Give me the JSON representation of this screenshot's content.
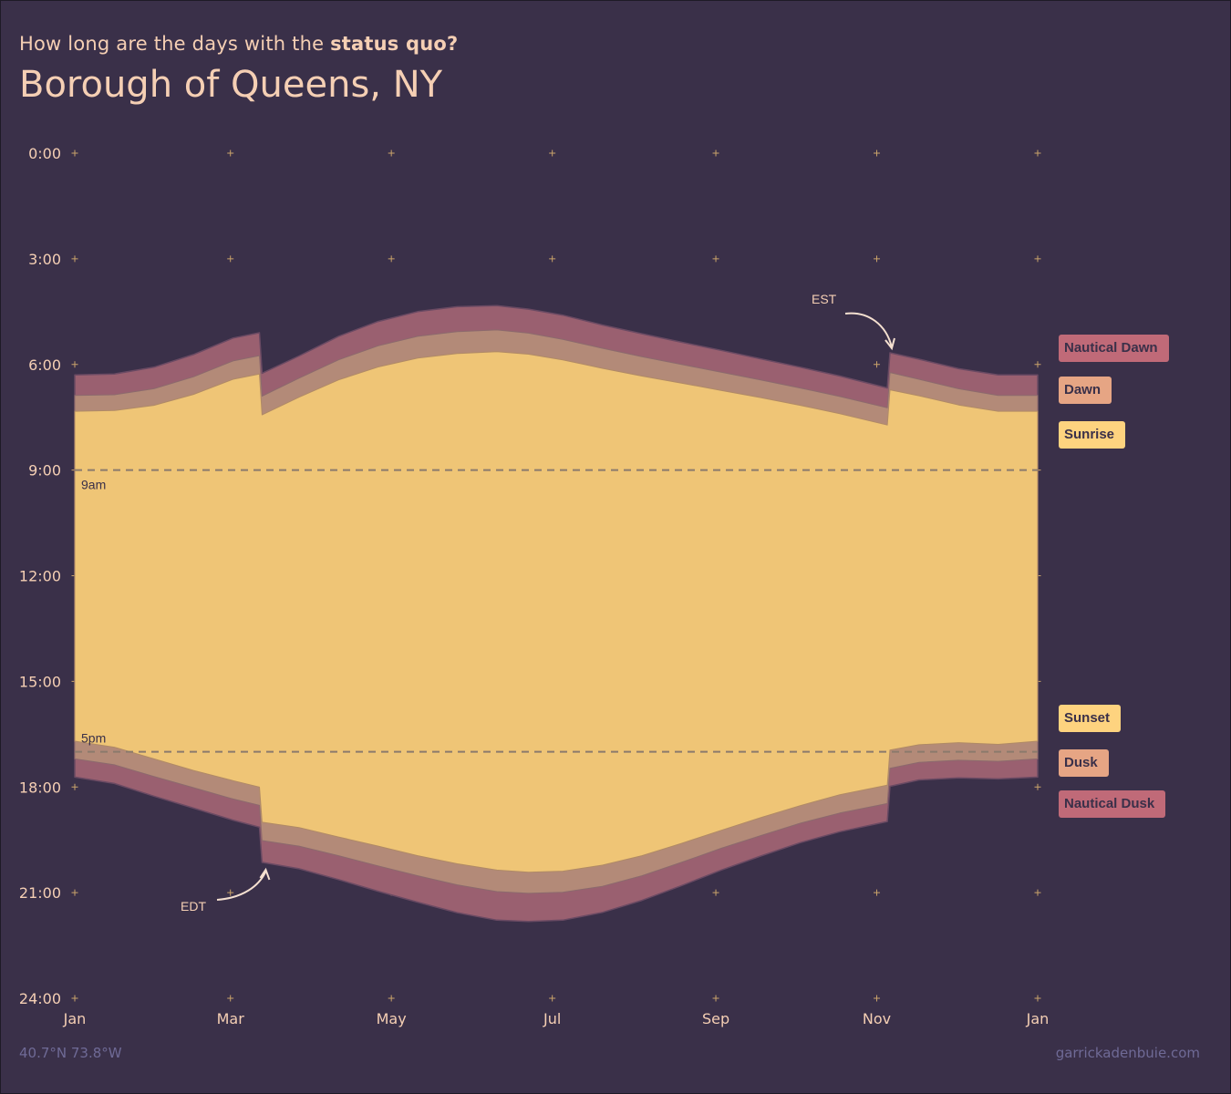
{
  "header": {
    "subtitle_prefix": "How long are the days with the",
    "subtitle_bold": "status quo?",
    "title": "Borough of Queens, NY"
  },
  "footer": {
    "coords": "40.7°N 73.8°W",
    "credit": "garrickadenbuie.com"
  },
  "legend": {
    "nautical_dawn": "Nautical Dawn",
    "dawn": "Dawn",
    "sunrise": "Sunrise",
    "sunset": "Sunset",
    "dusk": "Dusk",
    "nautical_dusk": "Nautical Dusk"
  },
  "colors": {
    "background": "#3a3049",
    "daylight": "#efc576",
    "civil_twilight": "#b38a78",
    "nautical_twilight": "#9a6070",
    "text": "#f5cfb4",
    "reference_line": "#8a7a6c",
    "legend_nautical": "#c06a78",
    "legend_civil": "#e6a584",
    "legend_sun": "#fed37f"
  },
  "chart_data": {
    "type": "area",
    "x_ticks": [
      "Jan",
      "Mar",
      "May",
      "Jul",
      "Sep",
      "Nov",
      "Jan"
    ],
    "x_tick_days": [
      0,
      59,
      120,
      181,
      243,
      304,
      365
    ],
    "y_ticks": [
      "0:00",
      "3:00",
      "6:00",
      "9:00",
      "12:00",
      "15:00",
      "18:00",
      "21:00",
      "24:00"
    ],
    "y_tick_hours": [
      0,
      3,
      6,
      9,
      12,
      15,
      18,
      21,
      24
    ],
    "ylim": [
      0,
      24
    ],
    "y_reversed": true,
    "xlim": [
      0,
      365
    ],
    "series_x_day": [
      0,
      15,
      30,
      45,
      60,
      70,
      71,
      85,
      100,
      115,
      130,
      145,
      160,
      172,
      185,
      200,
      215,
      230,
      245,
      260,
      275,
      290,
      308,
      309,
      320,
      335,
      350,
      365
    ],
    "series": [
      {
        "name": "Nautical Dawn",
        "values": [
          6.3,
          6.27,
          6.08,
          5.72,
          5.25,
          5.1,
          6.25,
          5.76,
          5.2,
          4.78,
          4.5,
          4.36,
          4.33,
          4.43,
          4.6,
          4.88,
          5.13,
          5.37,
          5.6,
          5.84,
          6.08,
          6.33,
          6.67,
          5.67,
          5.85,
          6.12,
          6.3,
          6.3
        ]
      },
      {
        "name": "Dawn",
        "values": [
          6.88,
          6.86,
          6.69,
          6.35,
          5.9,
          5.75,
          6.9,
          6.39,
          5.87,
          5.47,
          5.2,
          5.07,
          5.02,
          5.11,
          5.29,
          5.54,
          5.78,
          6.0,
          6.22,
          6.44,
          6.67,
          6.91,
          7.23,
          6.23,
          6.42,
          6.69,
          6.88,
          6.88
        ]
      },
      {
        "name": "Sunrise",
        "values": [
          7.33,
          7.31,
          7.16,
          6.85,
          6.42,
          6.27,
          7.43,
          6.93,
          6.44,
          6.07,
          5.82,
          5.69,
          5.64,
          5.71,
          5.87,
          6.11,
          6.33,
          6.53,
          6.74,
          6.94,
          7.16,
          7.4,
          7.72,
          6.72,
          6.89,
          7.15,
          7.33,
          7.33
        ]
      },
      {
        "name": "Sunset",
        "values": [
          16.7,
          16.87,
          17.2,
          17.53,
          17.82,
          18.0,
          19.0,
          19.15,
          19.42,
          19.68,
          19.95,
          20.18,
          20.36,
          20.42,
          20.39,
          20.22,
          19.95,
          19.6,
          19.23,
          18.87,
          18.53,
          18.22,
          17.95,
          16.95,
          16.8,
          16.74,
          16.79,
          16.7
        ]
      },
      {
        "name": "Dusk",
        "values": [
          17.2,
          17.37,
          17.7,
          18.02,
          18.34,
          18.52,
          19.52,
          19.68,
          19.95,
          20.24,
          20.52,
          20.78,
          20.97,
          21.02,
          20.99,
          20.82,
          20.52,
          20.14,
          19.74,
          19.38,
          19.03,
          18.74,
          18.47,
          17.47,
          17.3,
          17.24,
          17.27,
          17.2
        ]
      },
      {
        "name": "Nautical Dusk",
        "values": [
          17.72,
          17.9,
          18.26,
          18.6,
          18.94,
          19.14,
          20.14,
          20.32,
          20.63,
          20.96,
          21.27,
          21.57,
          21.78,
          21.82,
          21.78,
          21.56,
          21.22,
          20.8,
          20.36,
          19.96,
          19.58,
          19.27,
          18.98,
          17.98,
          17.8,
          17.74,
          17.77,
          17.72
        ]
      }
    ],
    "reference_lines": [
      {
        "label": "9am",
        "hour": 9
      },
      {
        "label": "5pm",
        "hour": 17
      }
    ],
    "annotations": [
      {
        "label": "EST",
        "day": 309
      },
      {
        "label": "EDT",
        "day": 71
      }
    ],
    "grid": true,
    "legend_position": "right"
  }
}
